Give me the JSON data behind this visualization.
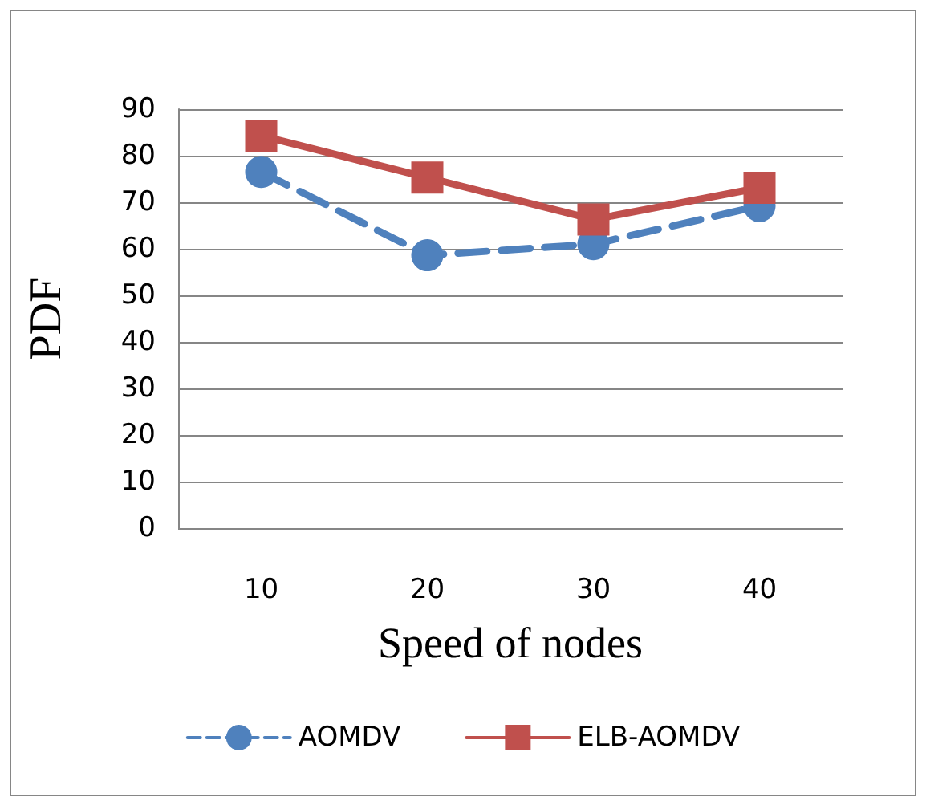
{
  "chart_data": {
    "type": "line",
    "xlabel": "Speed of nodes",
    "ylabel": "PDF",
    "categories": [
      "10",
      "20",
      "30",
      "40"
    ],
    "series": [
      {
        "name": "AOMDV",
        "color": "#4f81bd",
        "values": [
          76.5,
          58.6,
          61.0,
          69.2
        ],
        "line_style": "dashed",
        "marker": "circle"
      },
      {
        "name": "ELB-AOMDV",
        "color": "#c0504d",
        "values": [
          84.3,
          75.3,
          66.3,
          73.1
        ],
        "line_style": "solid",
        "marker": "square"
      }
    ],
    "ylim": [
      0,
      90
    ],
    "yticks": [
      0,
      10,
      20,
      30,
      40,
      50,
      60,
      70,
      80,
      90
    ],
    "grid": "y",
    "legend": "bottom"
  }
}
